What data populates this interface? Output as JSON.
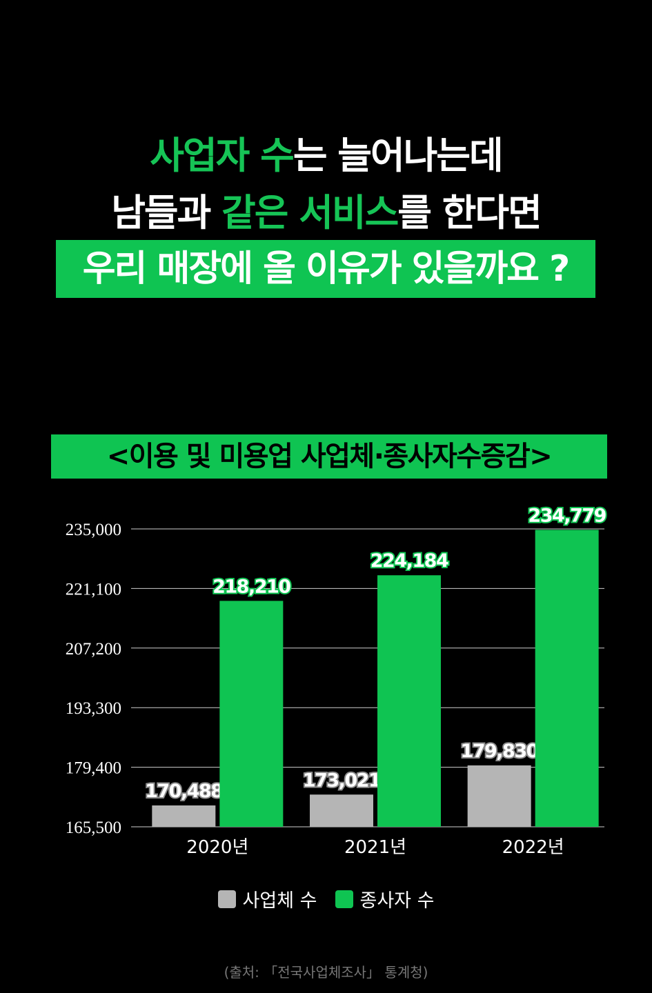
{
  "headline": {
    "line1_highlight": "사업자 수",
    "line1_rest": "는 늘어나는데",
    "line2_start": "남들과 ",
    "line2_highlight": "같은 서비스",
    "line2_end": "를 한다면",
    "line3": "우리 매장에 올 이유가 있을까요 ?"
  },
  "colors": {
    "accent_green": "#0fc452",
    "bar_gray": "#b5b5b5",
    "background": "#000000"
  },
  "chart_data": {
    "type": "bar",
    "title": "<이용 및 미용업 사업체·종사자수증감>",
    "categories": [
      "2020년",
      "2021년",
      "2022년"
    ],
    "series": [
      {
        "name": "사업체 수",
        "color": "#b5b5b5",
        "values": [
          170488,
          173021,
          179830
        ],
        "labels": [
          "170,488",
          "173,021",
          "179,830"
        ]
      },
      {
        "name": "종사자 수",
        "color": "#0fc452",
        "values": [
          218210,
          224184,
          234779
        ],
        "labels": [
          "218,210",
          "224,184",
          "234,779"
        ]
      }
    ],
    "yticks": [
      165500,
      179400,
      193300,
      207200,
      221100,
      235000
    ],
    "ytick_labels": [
      "165,500",
      "179,400",
      "193,300",
      "207,200",
      "221,100",
      "235,000"
    ],
    "ylim": [
      165500,
      235000
    ],
    "grid": true,
    "legend": "bottom-center"
  },
  "source": "(출처: 「전국사업체조사」 통계청)"
}
